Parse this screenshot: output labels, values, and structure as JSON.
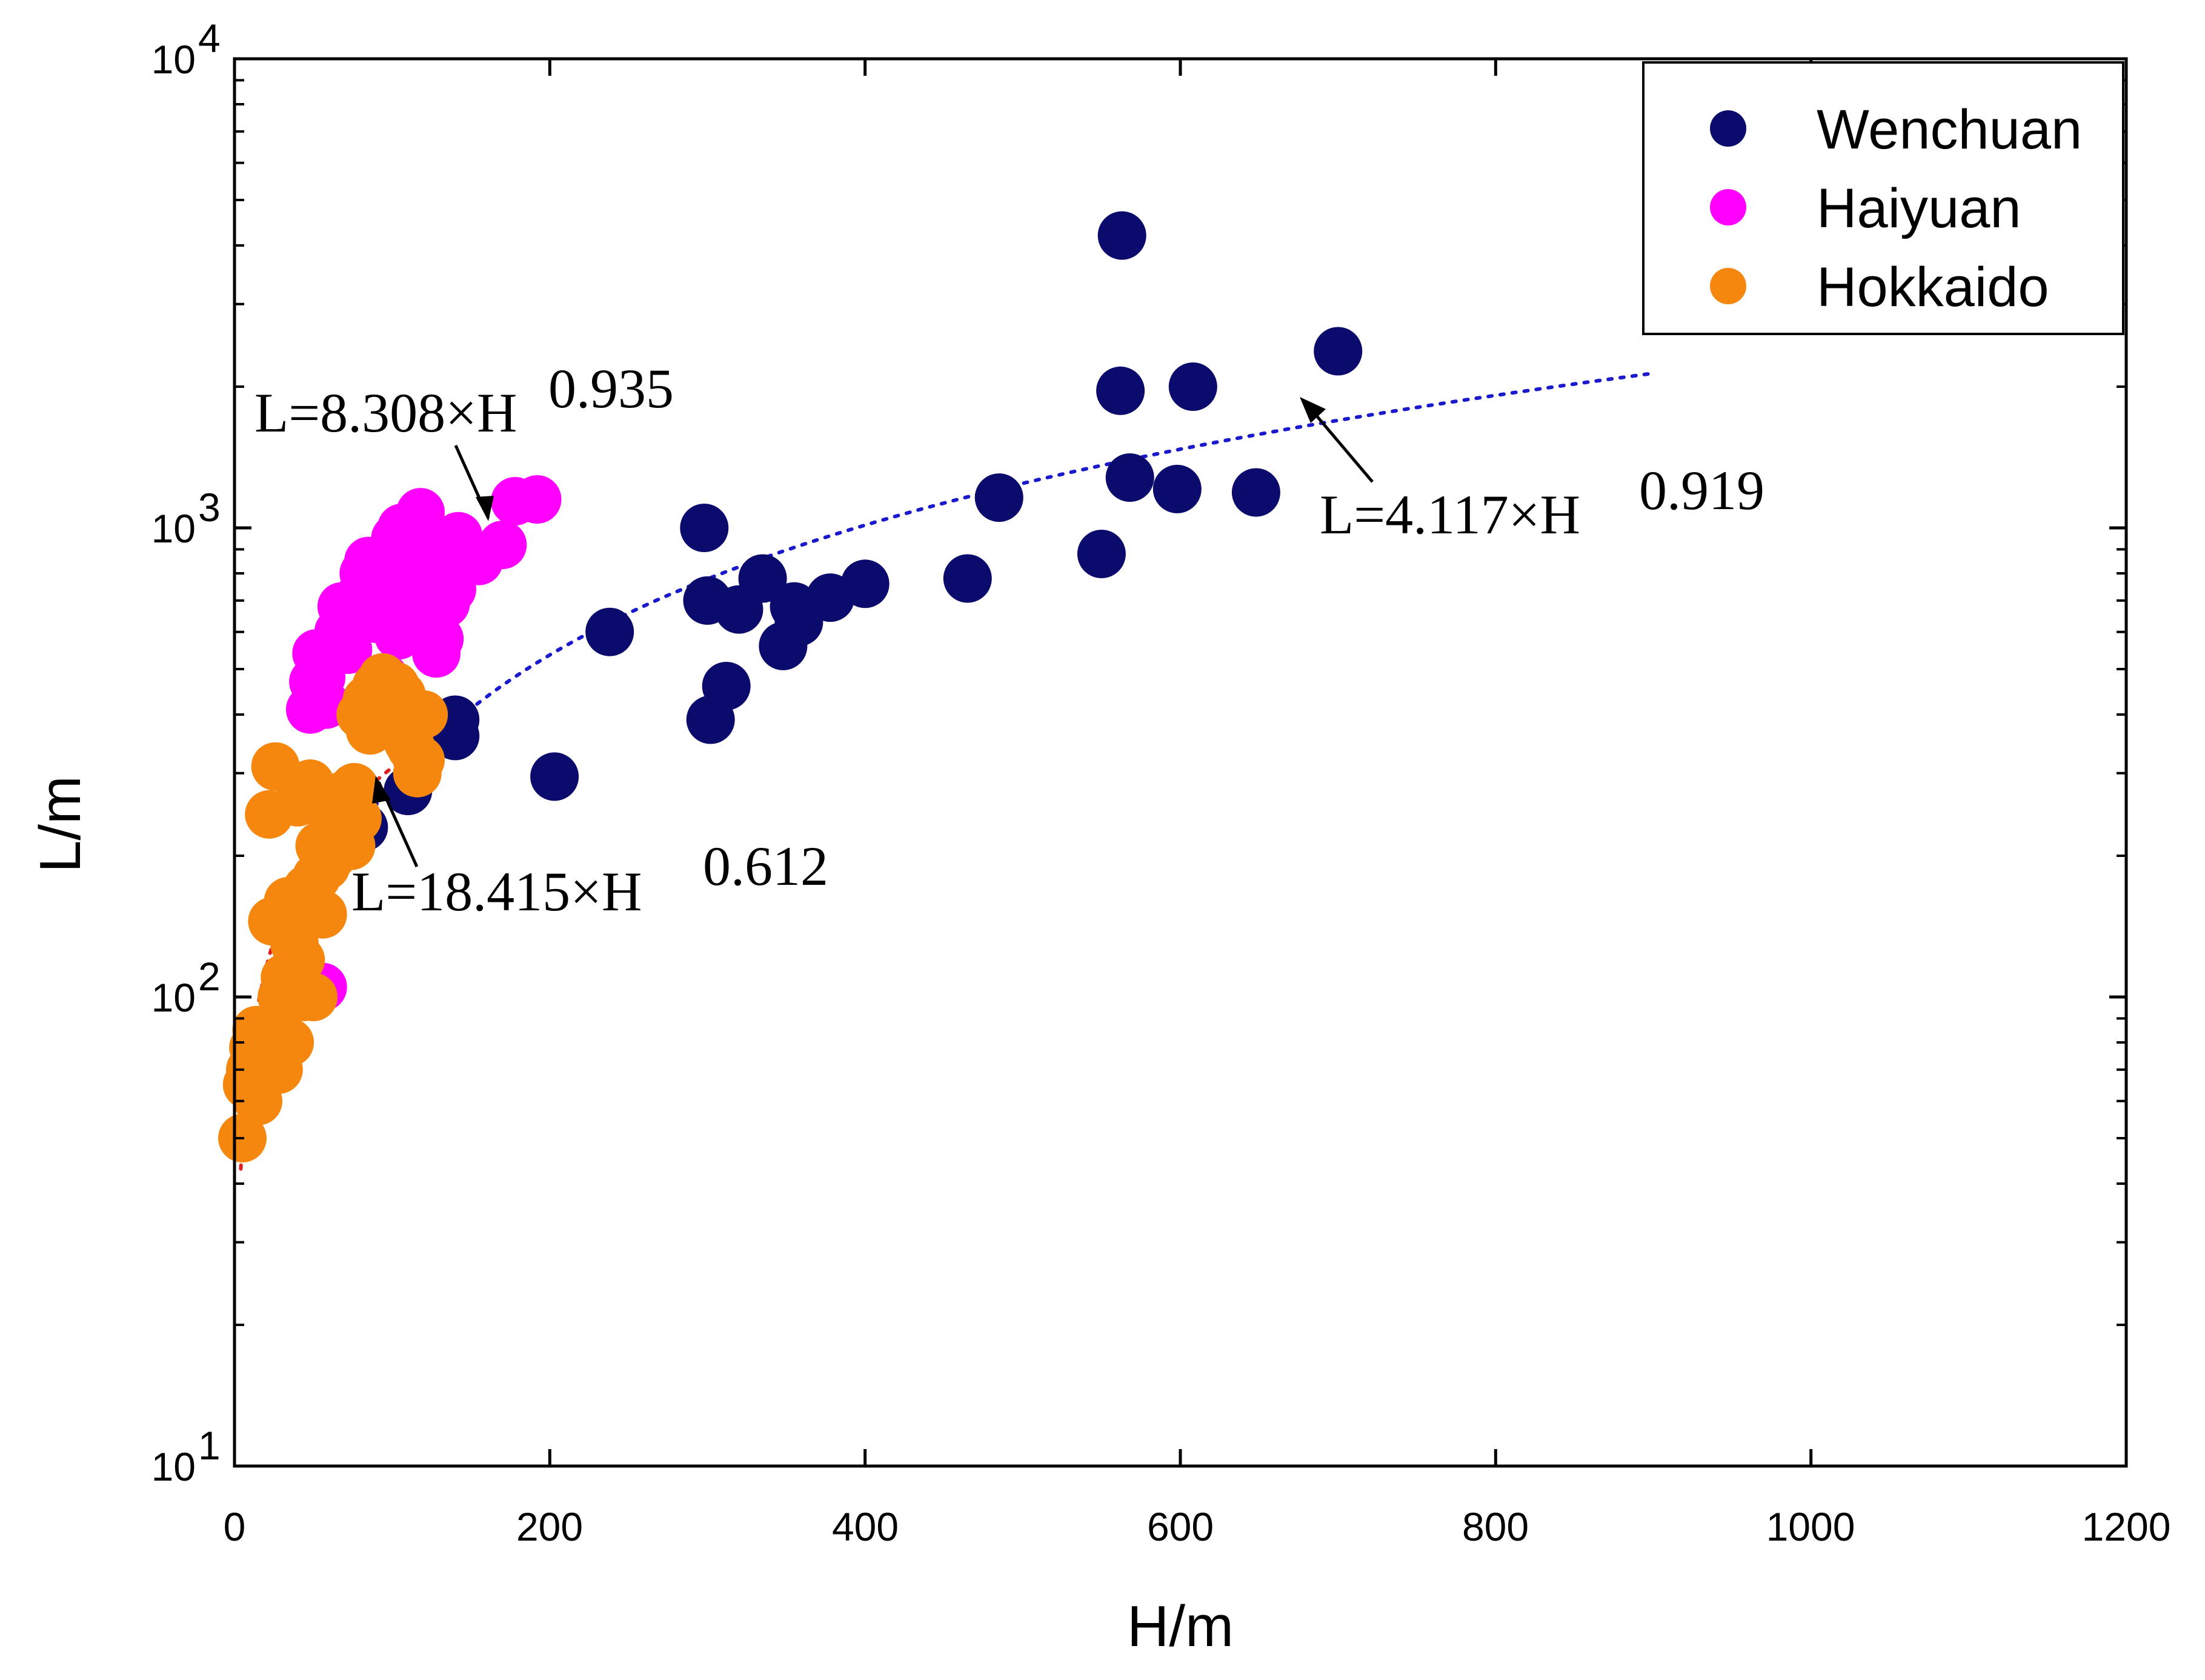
{
  "chart_data": {
    "type": "scatter",
    "x_scale": "linear",
    "y_scale": "log",
    "xlabel": "H/m",
    "ylabel": "L/m",
    "xlim": [
      0,
      1200
    ],
    "ylim": [
      10,
      10000
    ],
    "x_ticks": [
      "0",
      "200",
      "400",
      "600",
      "800",
      "1000",
      "1200"
    ],
    "y_ticks": [
      {
        "base": "10",
        "exp": "1"
      },
      {
        "base": "10",
        "exp": "2"
      },
      {
        "base": "10",
        "exp": "3"
      },
      {
        "base": "10",
        "exp": "4"
      }
    ],
    "legend_position": "top-right",
    "series": [
      {
        "name": "Wenchuan",
        "color": "#0b0b6e",
        "points": [
          [
            82,
            230
          ],
          [
            110,
            275
          ],
          [
            140,
            360
          ],
          [
            140,
            390
          ],
          [
            203,
            295
          ],
          [
            238,
            600
          ],
          [
            298,
            1000
          ],
          [
            300,
            700
          ],
          [
            302,
            390
          ],
          [
            312,
            460
          ],
          [
            320,
            670
          ],
          [
            335,
            780
          ],
          [
            348,
            560
          ],
          [
            355,
            680
          ],
          [
            358,
            630
          ],
          [
            378,
            710
          ],
          [
            400,
            760
          ],
          [
            465,
            780
          ],
          [
            485,
            1160
          ],
          [
            550,
            880
          ],
          [
            562,
            1960
          ],
          [
            563,
            4200
          ],
          [
            568,
            1280
          ],
          [
            598,
            1210
          ],
          [
            608,
            2000
          ],
          [
            648,
            1190
          ],
          [
            700,
            2380
          ]
        ]
      },
      {
        "name": "Haiyuan",
        "color": "#ff00ff",
        "points": [
          [
            48,
            410
          ],
          [
            50,
            470
          ],
          [
            52,
            540
          ],
          [
            55,
            480
          ],
          [
            58,
            420
          ],
          [
            56,
            105
          ],
          [
            60,
            260
          ],
          [
            66,
            600
          ],
          [
            68,
            680
          ],
          [
            72,
            550
          ],
          [
            75,
            640
          ],
          [
            80,
            720
          ],
          [
            82,
            800
          ],
          [
            85,
            850
          ],
          [
            88,
            760
          ],
          [
            90,
            640
          ],
          [
            95,
            480
          ],
          [
            98,
            700
          ],
          [
            100,
            880
          ],
          [
            102,
            950
          ],
          [
            104,
            590
          ],
          [
            106,
            1000
          ],
          [
            108,
            820
          ],
          [
            110,
            760
          ],
          [
            112,
            920
          ],
          [
            114,
            660
          ],
          [
            116,
            1040
          ],
          [
            118,
            1080
          ],
          [
            120,
            930
          ],
          [
            124,
            610
          ],
          [
            126,
            860
          ],
          [
            128,
            540
          ],
          [
            130,
            580
          ],
          [
            134,
            690
          ],
          [
            138,
            740
          ],
          [
            142,
            960
          ],
          [
            155,
            850
          ],
          [
            170,
            920
          ],
          [
            178,
            1140
          ],
          [
            192,
            1150
          ]
        ]
      },
      {
        "name": "Hokkaido",
        "color": "#f5870f",
        "points": [
          [
            5,
            50
          ],
          [
            8,
            65
          ],
          [
            10,
            70
          ],
          [
            12,
            78
          ],
          [
            14,
            85
          ],
          [
            15,
            60
          ],
          [
            20,
            75
          ],
          [
            22,
            245
          ],
          [
            24,
            145
          ],
          [
            26,
            310
          ],
          [
            28,
            70
          ],
          [
            30,
            100
          ],
          [
            32,
            110
          ],
          [
            34,
            160
          ],
          [
            35,
            80
          ],
          [
            38,
            130
          ],
          [
            40,
            260
          ],
          [
            42,
            120
          ],
          [
            44,
            100
          ],
          [
            46,
            170
          ],
          [
            48,
            285
          ],
          [
            50,
            100
          ],
          [
            52,
            180
          ],
          [
            54,
            210
          ],
          [
            56,
            150
          ],
          [
            58,
            190
          ],
          [
            60,
            250
          ],
          [
            62,
            200
          ],
          [
            64,
            230
          ],
          [
            66,
            215
          ],
          [
            68,
            260
          ],
          [
            70,
            270
          ],
          [
            72,
            245
          ],
          [
            74,
            210
          ],
          [
            76,
            280
          ],
          [
            78,
            240
          ],
          [
            80,
            400
          ],
          [
            84,
            430
          ],
          [
            86,
            370
          ],
          [
            90,
            460
          ],
          [
            94,
            480
          ],
          [
            98,
            420
          ],
          [
            102,
            460
          ],
          [
            106,
            440
          ],
          [
            108,
            380
          ],
          [
            110,
            350
          ],
          [
            112,
            340
          ],
          [
            116,
            300
          ],
          [
            118,
            320
          ],
          [
            120,
            400
          ]
        ]
      }
    ],
    "fits": [
      {
        "label": "L=8.308×H",
        "exp": "0.935",
        "a": 8.308,
        "b": 0.935,
        "color": "#000000",
        "x_range": [
          0,
          180
        ]
      },
      {
        "label": "L=4.117×H",
        "exp": "0.919",
        "a": 4.117,
        "b": 0.919,
        "color": "#1a1acc",
        "x_range": [
          80,
          900
        ]
      },
      {
        "label": "L=18.415×H",
        "exp": "0.612",
        "a": 18.415,
        "b": 0.612,
        "color": "#e02020",
        "x_range": [
          4,
          115
        ]
      }
    ]
  }
}
